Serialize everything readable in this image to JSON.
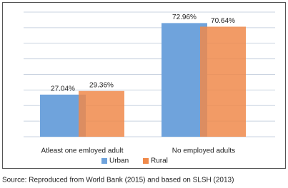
{
  "chart_data": {
    "type": "bar",
    "categories": [
      "Atleast one emloyed adult",
      "No employed adults"
    ],
    "series": [
      {
        "name": "Urban",
        "color": "#6fa3dc",
        "values": [
          27.04,
          72.96
        ],
        "value_labels": [
          "27.04%",
          "72.96%"
        ]
      },
      {
        "name": "Rural",
        "color": "#f08a4b",
        "values": [
          29.36,
          70.64
        ],
        "value_labels": [
          "29.36%",
          "70.64%"
        ]
      }
    ],
    "ylim": [
      0,
      80
    ],
    "yticks": [
      0,
      10,
      20,
      30,
      40,
      50,
      60,
      70,
      80
    ],
    "grid": true,
    "legend": "bottom",
    "source": "Source: Reproduced from World Bank (2015) and based on SLSH (2013)"
  }
}
